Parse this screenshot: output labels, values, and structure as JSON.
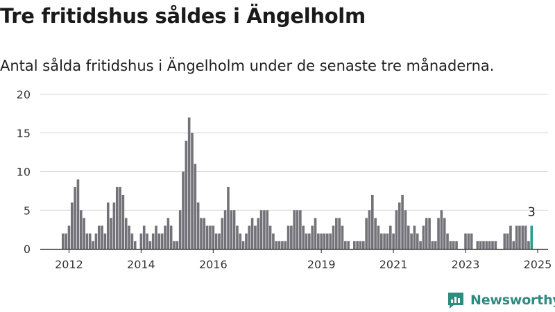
{
  "header": {
    "title": "Tre fritidshus såldes i Ängelholm",
    "subtitle": "Antal sålda fritidshus i Ängelholm under de senaste tre månaderna."
  },
  "logo": {
    "text": "Newsworthy",
    "icon": "newsworthy-chart-icon",
    "color": "#2e8b80"
  },
  "colors": {
    "bar": "#737278",
    "highlight": "#2a9d8f",
    "grid": "#d9d9d9",
    "axis": "#222222"
  },
  "chart_data": {
    "type": "bar",
    "title": "Tre fritidshus såldes i Ängelholm",
    "subtitle": "Antal sålda fritidshus i Ängelholm under de senaste tre månaderna.",
    "start": "2011-11",
    "frequency": "monthly",
    "ylim": [
      0,
      20
    ],
    "yticks": [
      0,
      5,
      10,
      15,
      20
    ],
    "xticks": [
      "2012",
      "2014",
      "2016",
      "2019",
      "2021",
      "2023",
      "2025"
    ],
    "grid": true,
    "values": [
      2,
      2,
      3,
      6,
      8,
      9,
      5,
      4,
      2,
      2,
      1,
      2,
      3,
      3,
      2,
      6,
      4,
      6,
      8,
      8,
      7,
      4,
      3,
      2,
      1,
      0,
      2,
      3,
      2,
      1,
      2,
      3,
      2,
      2,
      3,
      4,
      3,
      1,
      1,
      5,
      10,
      14,
      17,
      15,
      11,
      6,
      4,
      4,
      3,
      3,
      3,
      2,
      2,
      4,
      5,
      8,
      5,
      5,
      3,
      2,
      1,
      2,
      3,
      4,
      3,
      4,
      5,
      5,
      5,
      3,
      2,
      1,
      1,
      1,
      1,
      3,
      3,
      5,
      5,
      5,
      3,
      2,
      2,
      3,
      4,
      2,
      2,
      2,
      2,
      2,
      3,
      4,
      4,
      3,
      1,
      1,
      0,
      1,
      1,
      1,
      1,
      4,
      5,
      7,
      4,
      3,
      2,
      2,
      2,
      3,
      2,
      5,
      6,
      7,
      5,
      3,
      2,
      3,
      2,
      1,
      3,
      4,
      4,
      1,
      1,
      4,
      5,
      4,
      2,
      1,
      1,
      1,
      0,
      0,
      2,
      2,
      2,
      0,
      1,
      1,
      1,
      1,
      1,
      1,
      1,
      0,
      0,
      2,
      2,
      3,
      1,
      3,
      3,
      3,
      3,
      1,
      3
    ],
    "annotations": [
      {
        "label": "3",
        "value": 3,
        "index": "last"
      }
    ]
  }
}
